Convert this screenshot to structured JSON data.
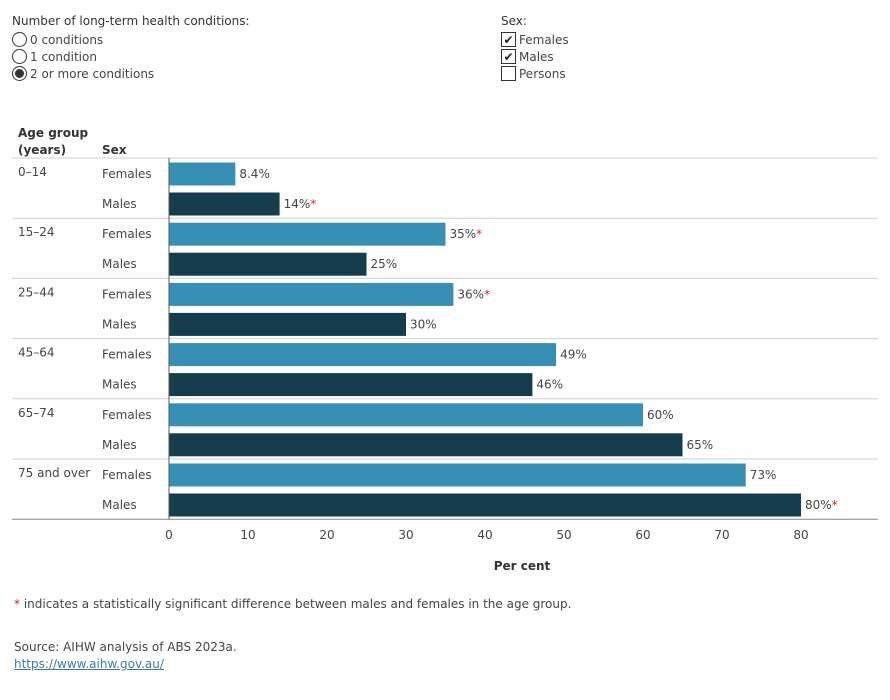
{
  "filters": {
    "conditions": {
      "title": "Number of long-term health conditions:",
      "options": [
        {
          "label": "0 conditions",
          "selected": false
        },
        {
          "label": "1 condition",
          "selected": false
        },
        {
          "label": "2 or more conditions",
          "selected": true
        }
      ]
    },
    "sex": {
      "title": "Sex:",
      "options": [
        {
          "label": "Females",
          "checked": true
        },
        {
          "label": "Males",
          "checked": true
        },
        {
          "label": "Persons",
          "checked": false
        }
      ]
    }
  },
  "chart_data": {
    "type": "bar",
    "orientation": "horizontal",
    "row_header_1_line1": "Age group",
    "row_header_1_line2": "(years)",
    "row_header_2": "Sex",
    "xlabel": "Per cent",
    "xlim": [
      0,
      88
    ],
    "xticks": [
      0,
      10,
      20,
      30,
      40,
      50,
      60,
      70,
      80
    ],
    "colors": {
      "Females": "#3790b4",
      "Males": "#163d4e",
      "star": "#d62728"
    },
    "groups": [
      {
        "age": "0–14",
        "bars": [
          {
            "sex": "Females",
            "value": 8.4,
            "label": "8.4%",
            "significant": false
          },
          {
            "sex": "Males",
            "value": 14,
            "label": "14%",
            "significant": true
          }
        ]
      },
      {
        "age": "15–24",
        "bars": [
          {
            "sex": "Females",
            "value": 35,
            "label": "35%",
            "significant": true
          },
          {
            "sex": "Males",
            "value": 25,
            "label": "25%",
            "significant": false
          }
        ]
      },
      {
        "age": "25–44",
        "bars": [
          {
            "sex": "Females",
            "value": 36,
            "label": "36%",
            "significant": true
          },
          {
            "sex": "Males",
            "value": 30,
            "label": "30%",
            "significant": false
          }
        ]
      },
      {
        "age": "45–64",
        "bars": [
          {
            "sex": "Females",
            "value": 49,
            "label": "49%",
            "significant": false
          },
          {
            "sex": "Males",
            "value": 46,
            "label": "46%",
            "significant": false
          }
        ]
      },
      {
        "age": "65–74",
        "bars": [
          {
            "sex": "Females",
            "value": 60,
            "label": "60%",
            "significant": false
          },
          {
            "sex": "Males",
            "value": 65,
            "label": "65%",
            "significant": false
          }
        ]
      },
      {
        "age": "75 and over",
        "bars": [
          {
            "sex": "Females",
            "value": 73,
            "label": "73%",
            "significant": false
          },
          {
            "sex": "Males",
            "value": 80,
            "label": "80%",
            "significant": true
          }
        ]
      }
    ]
  },
  "footnote": {
    "star": "*",
    "text": " indicates a statistically significant difference between males and females in the age group."
  },
  "source": {
    "text": "Source: AIHW analysis of ABS 2023a.",
    "link": "https://www.aihw.gov.au/"
  }
}
